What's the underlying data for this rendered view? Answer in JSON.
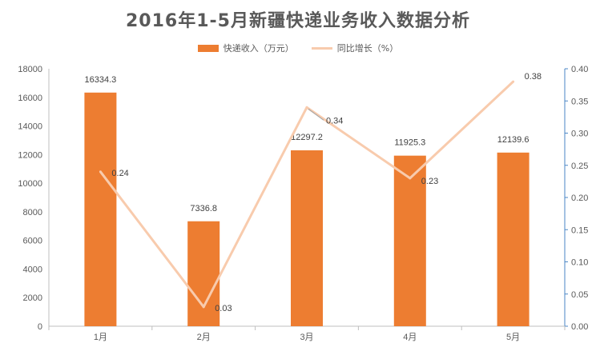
{
  "chart_data": {
    "type": "bar",
    "title": "2016年1-5月新疆快递业务收入数据分析",
    "categories": [
      "1月",
      "2月",
      "3月",
      "4月",
      "5月"
    ],
    "series": [
      {
        "name": "快递收入（万元）",
        "type": "bar",
        "axis": "left",
        "values": [
          16334.3,
          7336.8,
          12297.2,
          11925.3,
          12139.6
        ],
        "color": "#ED7D31"
      },
      {
        "name": "同比增长（%）",
        "type": "line",
        "axis": "right",
        "values": [
          0.24,
          0.03,
          0.34,
          0.23,
          0.38
        ],
        "color": "#F8CBAD"
      }
    ],
    "y_left": {
      "min": 0,
      "max": 18000,
      "step": 2000,
      "ticks": [
        "0",
        "2000",
        "4000",
        "6000",
        "8000",
        "10000",
        "12000",
        "14000",
        "16000",
        "18000"
      ]
    },
    "y_right": {
      "min": 0,
      "max": 0.4,
      "step": 0.05,
      "ticks": [
        "0.00",
        "0.05",
        "0.10",
        "0.15",
        "0.20",
        "0.25",
        "0.30",
        "0.35",
        "0.40"
      ]
    },
    "bar_labels": [
      "16334.3",
      "7336.8",
      "12297.2",
      "11925.3",
      "12139.6"
    ],
    "line_labels": [
      "0.24",
      "0.03",
      "0.34",
      "0.23",
      "0.38"
    ],
    "legend_position": "top",
    "grid": false
  }
}
